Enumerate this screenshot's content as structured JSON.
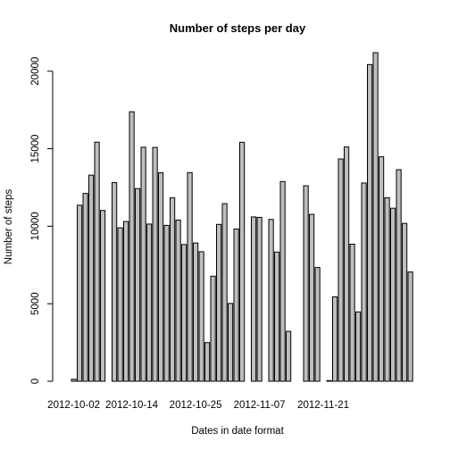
{
  "chart_data": {
    "type": "bar",
    "title": "Number of steps per day",
    "xlabel": "Dates in date format",
    "ylabel": "Number of steps",
    "ylim": [
      0,
      21194
    ],
    "yticks": [
      0,
      5000,
      10000,
      15000,
      20000
    ],
    "xtick_labels": [
      "2012-10-02",
      "2012-10-14",
      "2012-10-25",
      "2012-11-07",
      "2012-11-21"
    ],
    "xtick_index": [
      1,
      11,
      22,
      33,
      44
    ],
    "categories": [
      "2012-10-01",
      "2012-10-02",
      "2012-10-03",
      "2012-10-04",
      "2012-10-05",
      "2012-10-06",
      "2012-10-07",
      "2012-10-08",
      "2012-10-09",
      "2012-10-10",
      "2012-10-11",
      "2012-10-12",
      "2012-10-13",
      "2012-10-14",
      "2012-10-15",
      "2012-10-16",
      "2012-10-17",
      "2012-10-18",
      "2012-10-19",
      "2012-10-20",
      "2012-10-21",
      "2012-10-22",
      "2012-10-23",
      "2012-10-24",
      "2012-10-25",
      "2012-10-26",
      "2012-10-27",
      "2012-10-28",
      "2012-10-29",
      "2012-10-30",
      "2012-10-31",
      "2012-11-01",
      "2012-11-02",
      "2012-11-03",
      "2012-11-04",
      "2012-11-05",
      "2012-11-06",
      "2012-11-07",
      "2012-11-08",
      "2012-11-09",
      "2012-11-10",
      "2012-11-11",
      "2012-11-12",
      "2012-11-13",
      "2012-11-14",
      "2012-11-15",
      "2012-11-16",
      "2012-11-17",
      "2012-11-18",
      "2012-11-19",
      "2012-11-20",
      "2012-11-21",
      "2012-11-22",
      "2012-11-23",
      "2012-11-24",
      "2012-11-25",
      "2012-11-26",
      "2012-11-27",
      "2012-11-28",
      "2012-11-29",
      "2012-11-30"
    ],
    "values": [
      0,
      126,
      11352,
      12116,
      13294,
      15420,
      11015,
      0,
      12811,
      9900,
      10304,
      17382,
      12426,
      15098,
      10139,
      15084,
      13452,
      10056,
      11829,
      10395,
      8821,
      13460,
      8918,
      8355,
      2492,
      6778,
      10119,
      11458,
      5018,
      9819,
      15414,
      0,
      10600,
      10571,
      0,
      10439,
      8334,
      12883,
      3219,
      0,
      0,
      12608,
      10765,
      7336,
      0,
      41,
      5441,
      14339,
      15110,
      8841,
      4472,
      12787,
      20427,
      21194,
      14478,
      11834,
      11162,
      13646,
      10183,
      7047,
      0
    ]
  }
}
